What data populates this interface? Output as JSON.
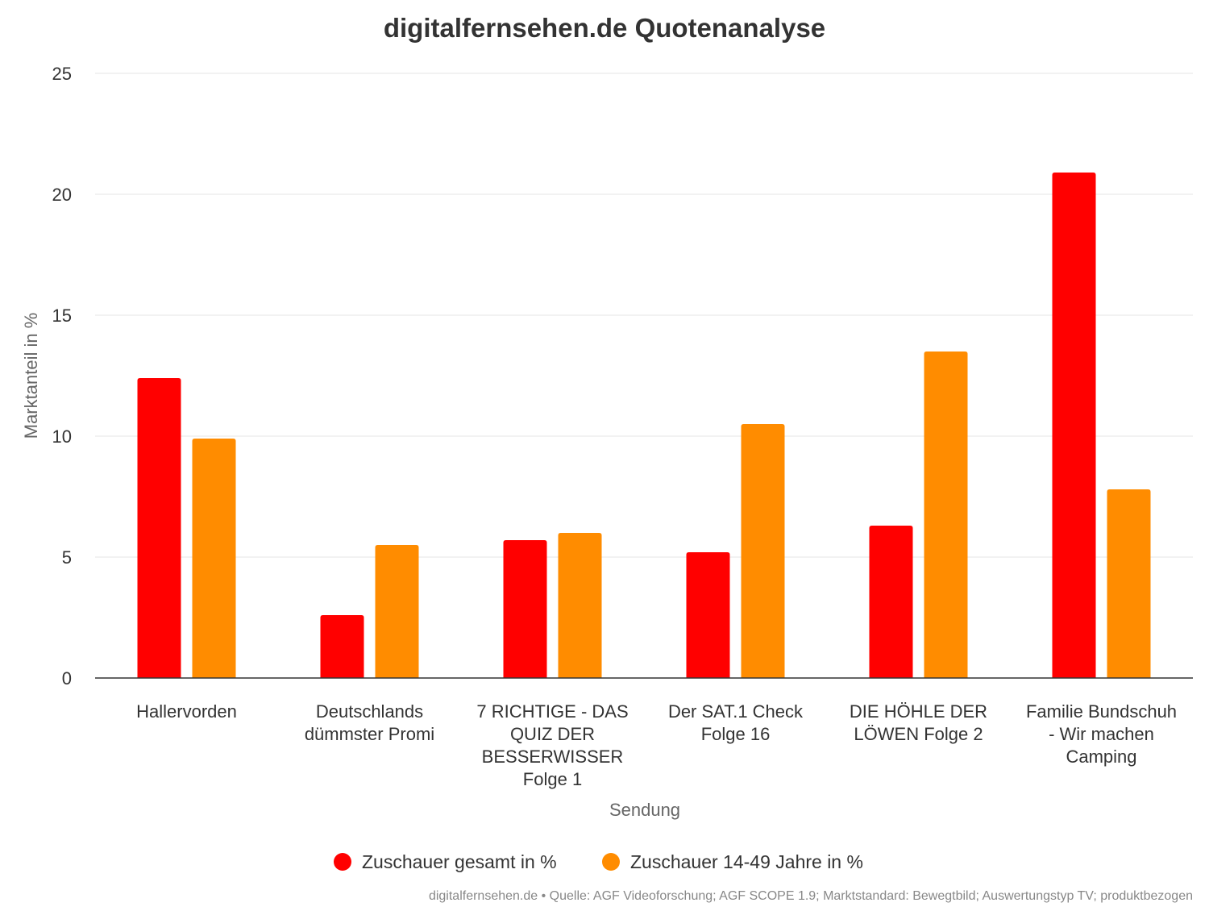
{
  "chart_data": {
    "type": "bar",
    "title": "digitalfernsehen.de Quotenanalyse",
    "xlabel": "Sendung",
    "ylabel": "Marktanteil in %",
    "ylim": [
      0,
      25
    ],
    "yticks": [
      0,
      5,
      10,
      15,
      20,
      25
    ],
    "grid": true,
    "legend_position": "bottom",
    "categories": [
      [
        "Hallervorden"
      ],
      [
        "Deutschlands",
        "dümmster Promi"
      ],
      [
        "7 RICHTIGE - DAS",
        "QUIZ DER",
        "BESSERWISSER",
        "Folge 1"
      ],
      [
        "Der SAT.1 Check",
        "Folge 16"
      ],
      [
        "DIE HÖHLE DER",
        "LÖWEN Folge 2"
      ],
      [
        "Familie Bundschuh",
        "- Wir machen",
        "Camping"
      ]
    ],
    "series": [
      {
        "name": "Zuschauer gesamt in %",
        "color": "#ff0000",
        "values": [
          12.4,
          2.6,
          5.7,
          5.2,
          6.3,
          20.9
        ]
      },
      {
        "name": "Zuschauer 14-49 Jahre in %",
        "color": "#ff8c00",
        "values": [
          9.9,
          5.5,
          6.0,
          10.5,
          13.5,
          7.8
        ]
      }
    ],
    "source": "digitalfernsehen.de • Quelle: AGF Videoforschung; AGF SCOPE 1.9; Marktstandard: Bewegtbild; Auswertungstyp TV; produktbezogen"
  }
}
